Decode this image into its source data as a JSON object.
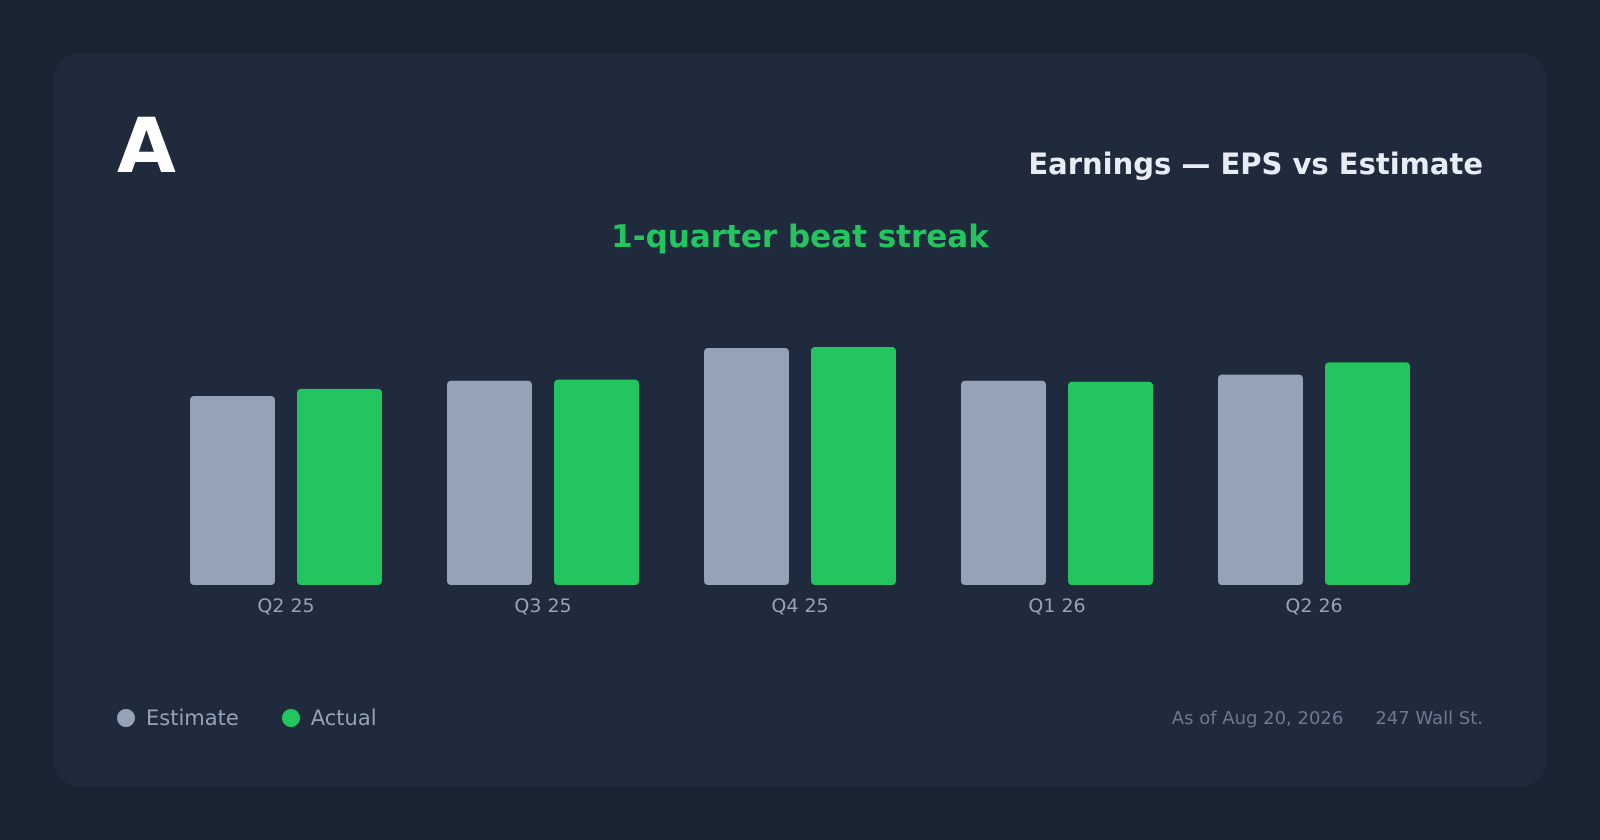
{
  "logo": "A",
  "title": "Earnings — EPS vs Estimate",
  "subtitle": "1-quarter beat streak",
  "legend": [
    {
      "label": "Estimate",
      "color": "#94a3b8"
    },
    {
      "label": "Actual",
      "color": "#22c55e"
    }
  ],
  "footer": {
    "date": "As of Aug 20, 2026",
    "source": "247 Wall St."
  },
  "chart_data": {
    "type": "bar",
    "categories": [
      "Q2 25",
      "Q3 25",
      "Q4 25",
      "Q1 26",
      "Q2 26"
    ],
    "series": [
      {
        "name": "Estimate",
        "color": "#94a3b8",
        "values": [
          1.85,
          2.0,
          2.32,
          2.0,
          2.06
        ]
      },
      {
        "name": "Actual",
        "color": "#22c55e",
        "values": [
          1.92,
          2.01,
          2.33,
          1.99,
          2.18
        ]
      }
    ],
    "ylim": [
      0,
      2.33
    ],
    "grid": false
  }
}
